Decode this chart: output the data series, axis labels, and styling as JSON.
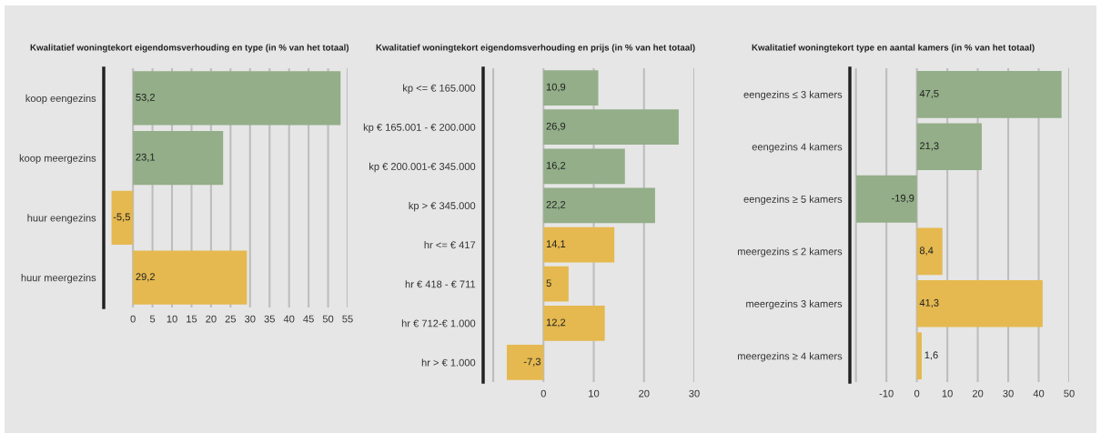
{
  "chart_data": [
    {
      "type": "bar",
      "orientation": "horizontal",
      "title": "Kwalitatief woningtekort eigendomsverhouding en type (in % van het totaal)",
      "categories": [
        "koop eengezins",
        "koop meergezins",
        "huur eengezins",
        "huur meergezins"
      ],
      "values": [
        53.2,
        23.1,
        -5.5,
        29.2
      ],
      "colors": [
        "#93ae88",
        "#93ae88",
        "#e5b94f",
        "#e5b94f"
      ],
      "value_labels": [
        "53,2",
        "23,1",
        "-5,5",
        "29,2"
      ],
      "xlim": [
        -7.5,
        55
      ],
      "xticks": [
        0,
        5,
        10,
        15,
        20,
        25,
        30,
        35,
        40,
        45,
        50,
        55
      ],
      "grid": "x"
    },
    {
      "type": "bar",
      "orientation": "horizontal",
      "title": "Kwalitatief woningtekort eigendomsverhouding en prijs (in % van het totaal)",
      "categories": [
        "kp <= € 165.000",
        "kp € 165.001 - € 200.000",
        "kp € 200.001-€ 345.000",
        "kp > € 345.000",
        "hr <= € 417",
        "hr € 418 - € 711",
        "hr € 712-€ 1.000",
        "hr > € 1.000"
      ],
      "values": [
        10.9,
        26.9,
        16.2,
        22.2,
        14.1,
        5,
        12.2,
        -7.3
      ],
      "colors": [
        "#93ae88",
        "#93ae88",
        "#93ae88",
        "#93ae88",
        "#e5b94f",
        "#e5b94f",
        "#e5b94f",
        "#e5b94f"
      ],
      "value_labels": [
        "10,9",
        "26,9",
        "16,2",
        "22,2",
        "14,1",
        "5",
        "12,2",
        "-7,3"
      ],
      "xlim": [
        -12,
        30
      ],
      "xticks": [
        {
          "value": -10,
          "label": null
        },
        0,
        10,
        20,
        30
      ],
      "grid": "x"
    },
    {
      "type": "bar",
      "orientation": "horizontal",
      "title": "Kwalitatief woningtekort type en aantal kamers (in % van het totaal)",
      "categories": [
        "eengezins ≤ 3 kamers",
        "eengezins 4 kamers",
        "eengezins ≥ 5 kamers",
        "meergezins ≤ 2 kamers",
        "meergezins 3 kamers",
        "meergezins ≥ 4 kamers"
      ],
      "values": [
        47.5,
        21.3,
        -19.9,
        8.4,
        41.3,
        1.6
      ],
      "colors": [
        "#93ae88",
        "#93ae88",
        "#93ae88",
        "#e5b94f",
        "#e5b94f",
        "#e5b94f"
      ],
      "value_labels": [
        "47,5",
        "21,3",
        "-19,9",
        "8,4",
        "41,3",
        "1,6"
      ],
      "xlim": [
        -22,
        50
      ],
      "xticks": [
        {
          "value": -20,
          "label": null
        },
        -10,
        0,
        10,
        20,
        30,
        40,
        50
      ],
      "grid": "x"
    }
  ]
}
